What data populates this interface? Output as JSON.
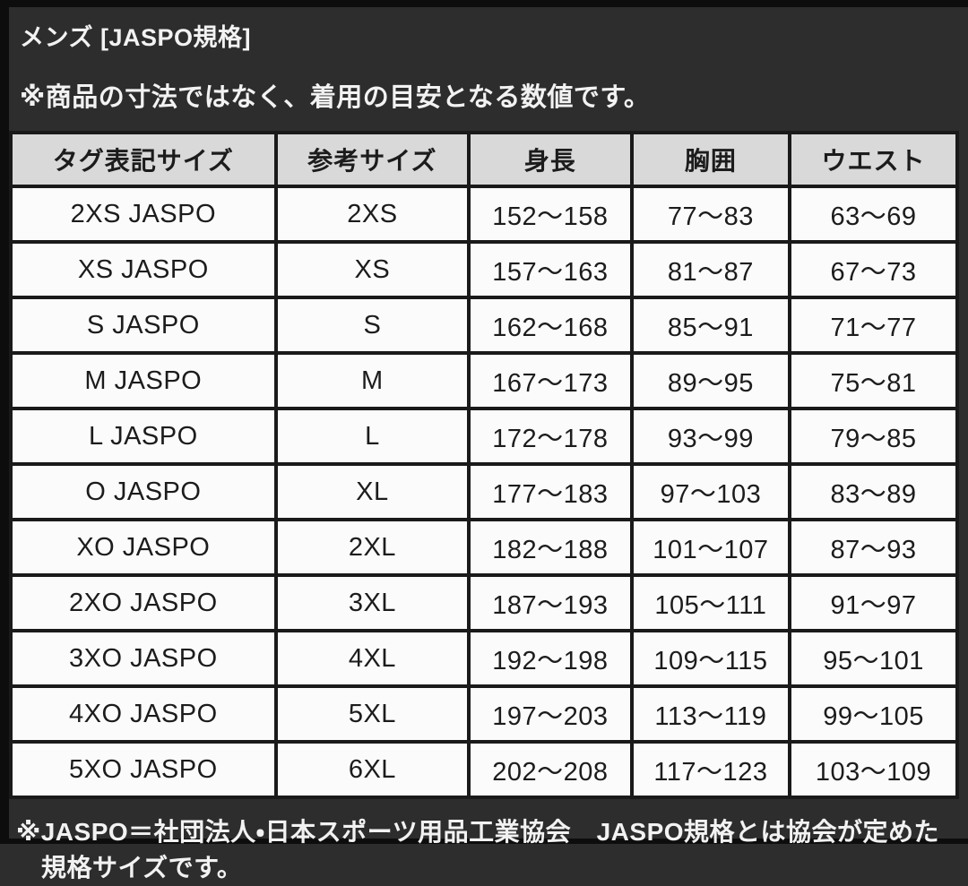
{
  "page": {
    "title": "メンズ [JASPO規格]",
    "note": "※商品の寸法ではなく、着用の目安となる数値です。",
    "footer": "※JASPO＝社団法人・日本スポーツ用品工業協会　JASPO規格とは協会が定めた規格サイズです。"
  },
  "table": {
    "headers": [
      "タグ表記サイズ",
      "参考サイズ",
      "身長",
      "胸囲",
      "ウエスト"
    ],
    "rows": [
      [
        "2XS JASPO",
        "2XS",
        "152〜158",
        "77〜83",
        "63〜69"
      ],
      [
        "XS JASPO",
        "XS",
        "157〜163",
        "81〜87",
        "67〜73"
      ],
      [
        "S JASPO",
        "S",
        "162〜168",
        "85〜91",
        "71〜77"
      ],
      [
        "M JASPO",
        "M",
        "167〜173",
        "89〜95",
        "75〜81"
      ],
      [
        "L JASPO",
        "L",
        "172〜178",
        "93〜99",
        "79〜85"
      ],
      [
        "O JASPO",
        "XL",
        "177〜183",
        "97〜103",
        "83〜89"
      ],
      [
        "XO JASPO",
        "2XL",
        "182〜188",
        "101〜107",
        "87〜93"
      ],
      [
        "2XO JASPO",
        "3XL",
        "187〜193",
        "105〜111",
        "91〜97"
      ],
      [
        "3XO JASPO",
        "4XL",
        "192〜198",
        "109〜115",
        "95〜101"
      ],
      [
        "4XO JASPO",
        "5XL",
        "197〜203",
        "113〜119",
        "99〜105"
      ],
      [
        "5XO JASPO",
        "6XL",
        "202〜208",
        "117〜123",
        "103〜109"
      ]
    ]
  },
  "colors": {
    "background": "#2d2d2d",
    "edge": "#0d0d0d",
    "header_cell_bg": "#d9d9d9",
    "cell_bg": "#fbfbfb",
    "border": "#1a1a1a",
    "text_light": "#f2f2f2",
    "text_dark": "#1c1c1c"
  }
}
